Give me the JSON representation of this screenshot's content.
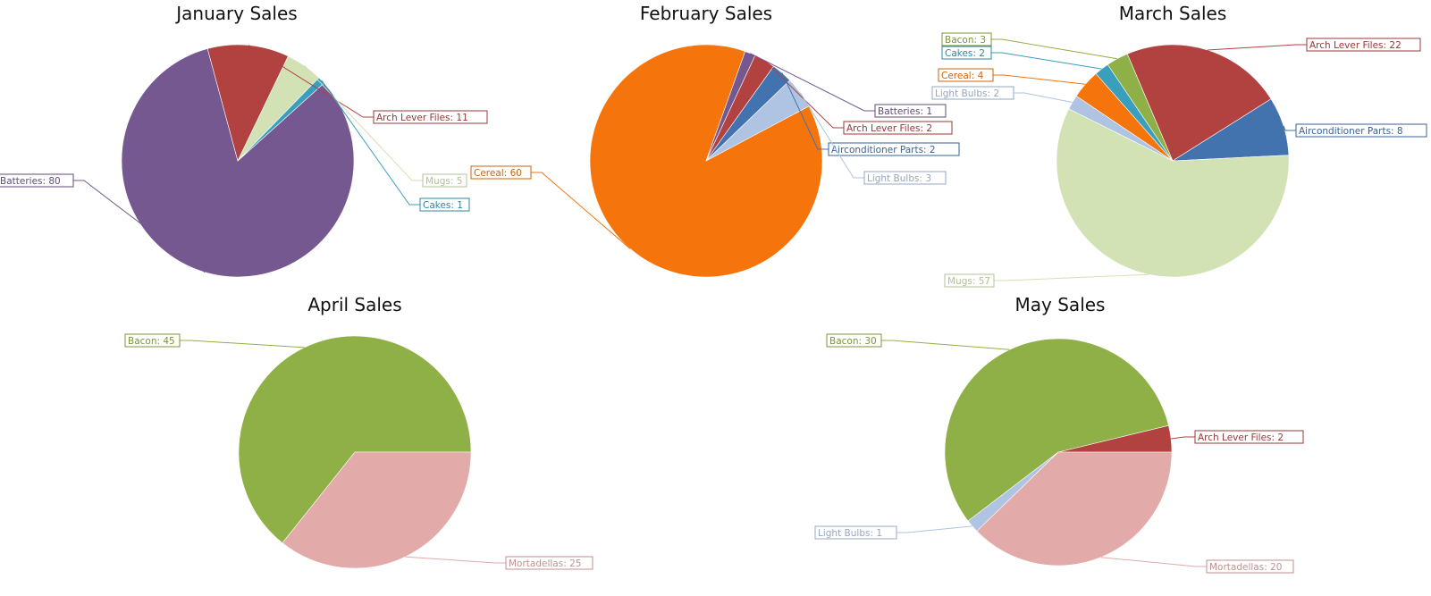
{
  "chart_data": [
    {
      "type": "pie",
      "title": "January Sales",
      "slices": [
        {
          "label": "Arch Lever Files",
          "value": 11,
          "color": "#b24240"
        },
        {
          "label": "Batteries",
          "value": 80,
          "color": "#74588f"
        },
        {
          "label": "Cakes",
          "value": 1,
          "color": "#3a9ebd"
        },
        {
          "label": "Mugs",
          "value": 5,
          "color": "#d2e2b4"
        }
      ]
    },
    {
      "type": "pie",
      "title": "February Sales",
      "slices": [
        {
          "label": "Batteries",
          "value": 1,
          "color": "#74588f"
        },
        {
          "label": "Cereal",
          "value": 60,
          "color": "#f5750c"
        },
        {
          "label": "Light Bulbs",
          "value": 3,
          "color": "#aec4e2"
        },
        {
          "label": "Airconditioner Parts",
          "value": 2,
          "color": "#4373ae"
        },
        {
          "label": "Arch Lever Files",
          "value": 2,
          "color": "#b24240"
        }
      ]
    },
    {
      "type": "pie",
      "title": "March Sales",
      "slices": [
        {
          "label": "Arch Lever Files",
          "value": 22,
          "color": "#b24240"
        },
        {
          "label": "Bacon",
          "value": 3,
          "color": "#8fb046"
        },
        {
          "label": "Cakes",
          "value": 2,
          "color": "#3a9ebd"
        },
        {
          "label": "Cereal",
          "value": 4,
          "color": "#f5750c"
        },
        {
          "label": "Light Bulbs",
          "value": 2,
          "color": "#aec4e2"
        },
        {
          "label": "Mugs",
          "value": 57,
          "color": "#d2e2b4"
        },
        {
          "label": "Airconditioner Parts",
          "value": 8,
          "color": "#4373ae"
        }
      ]
    },
    {
      "type": "pie",
      "title": "April Sales",
      "slices": [
        {
          "label": "Bacon",
          "value": 45,
          "color": "#8fb046"
        },
        {
          "label": "Mortadellas",
          "value": 25,
          "color": "#e2abaa"
        }
      ]
    },
    {
      "type": "pie",
      "title": "May Sales",
      "slices": [
        {
          "label": "Arch Lever Files",
          "value": 2,
          "color": "#b24240"
        },
        {
          "label": "Bacon",
          "value": 30,
          "color": "#8fb046"
        },
        {
          "label": "Light Bulbs",
          "value": 1,
          "color": "#aec4e2"
        },
        {
          "label": "Mortadellas",
          "value": 20,
          "color": "#e2abaa"
        }
      ]
    }
  ]
}
